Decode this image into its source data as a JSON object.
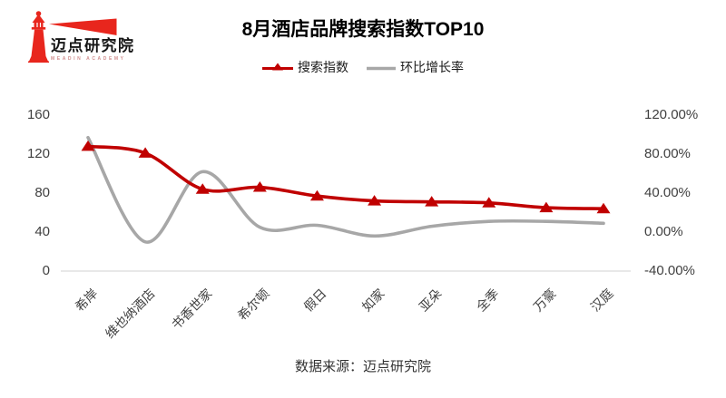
{
  "logo": {
    "title": "迈点研究院",
    "subtitle": "MEADIN ACADEMY"
  },
  "chart": {
    "title": "8月酒店品牌搜索指数TOP10",
    "source": "数据来源：迈点研究院"
  },
  "colors": {
    "series1": "#c00000",
    "series2": "#a7a7a7",
    "gridline": "#d9d9d9",
    "axis_text": "#404040",
    "logo_red": "#e8261d"
  },
  "chart_data": {
    "type": "line",
    "title": "8月酒店品牌搜索指数TOP10",
    "smooth": true,
    "grid": "zero-line-only",
    "legend_position": "top",
    "categories": [
      "希岸",
      "维也纳酒店",
      "书香世家",
      "希尔顿",
      "假日",
      "如家",
      "亚朵",
      "全季",
      "万豪",
      "汉庭"
    ],
    "series": [
      {
        "name": "搜索指数",
        "axis": "left",
        "color": "#c00000",
        "marker": "triangle",
        "values": [
          128,
          121,
          84,
          86,
          77,
          72,
          71,
          70,
          65,
          64
        ]
      },
      {
        "name": "环比增长率",
        "axis": "right",
        "color": "#a7a7a7",
        "marker": "none",
        "unit": "%",
        "values": [
          97,
          -10,
          62,
          5,
          7,
          -4,
          6,
          11,
          11,
          9
        ]
      }
    ],
    "left_axis": {
      "range": [
        0,
        160
      ],
      "ticks": [
        160,
        120,
        80,
        40,
        0
      ]
    },
    "right_axis": {
      "range": [
        -40,
        120
      ],
      "ticks": [
        "120.00%",
        "80.00%",
        "40.00%",
        "0.00%",
        "-40.00%"
      ]
    }
  }
}
